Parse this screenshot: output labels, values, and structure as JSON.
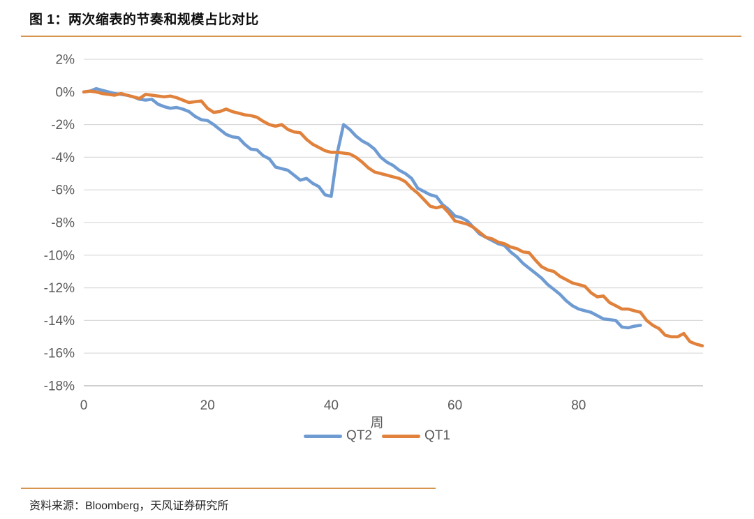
{
  "figure": {
    "title": "图 1：两次缩表的节奏和规模占比对比",
    "source": "资料来源：Bloomberg，天风证券研究所"
  },
  "colors": {
    "accent_rule": "#d6954f",
    "qt2_blue": "#6f9bd3",
    "qt1_orange": "#e0813c"
  },
  "chart_data": {
    "type": "line",
    "title": "",
    "xlabel": "周",
    "ylabel": "",
    "xlim": [
      0,
      100
    ],
    "ylim": [
      -18,
      2
    ],
    "grid": "horizontal",
    "grid_color": "#d9d9d9",
    "axis_line_color": "#bfbfbf",
    "axis_text_color": "#595959",
    "legend_position": "bottom",
    "x_ticks": [
      {
        "value": 0,
        "label": "0"
      },
      {
        "value": 20,
        "label": "20"
      },
      {
        "value": 40,
        "label": "40"
      },
      {
        "value": 60,
        "label": "60"
      },
      {
        "value": 80,
        "label": "80"
      }
    ],
    "y_ticks": [
      {
        "value": 2,
        "label": "2%"
      },
      {
        "value": 0,
        "label": "0%"
      },
      {
        "value": -2,
        "label": "-2%"
      },
      {
        "value": -4,
        "label": "-4%"
      },
      {
        "value": -6,
        "label": "-6%"
      },
      {
        "value": -8,
        "label": "-8%"
      },
      {
        "value": -10,
        "label": "-10%"
      },
      {
        "value": -12,
        "label": "-12%"
      },
      {
        "value": -14,
        "label": "-14%"
      },
      {
        "value": -16,
        "label": "-16%"
      },
      {
        "value": -18,
        "label": "-18%"
      }
    ],
    "series": [
      {
        "name": "QT2",
        "color": "#6f9bd3",
        "x_start": 0,
        "x_step": 1,
        "values": [
          0.0,
          0.05,
          0.2,
          0.1,
          0.0,
          -0.1,
          -0.15,
          -0.2,
          -0.3,
          -0.45,
          -0.5,
          -0.45,
          -0.75,
          -0.9,
          -1.0,
          -0.95,
          -1.05,
          -1.2,
          -1.5,
          -1.7,
          -1.75,
          -2.0,
          -2.3,
          -2.6,
          -2.75,
          -2.8,
          -3.2,
          -3.5,
          -3.55,
          -3.9,
          -4.1,
          -4.6,
          -4.7,
          -4.8,
          -5.1,
          -5.4,
          -5.3,
          -5.6,
          -5.8,
          -6.3,
          -6.4,
          -3.7,
          -2.0,
          -2.3,
          -2.7,
          -3.0,
          -3.2,
          -3.5,
          -4.0,
          -4.3,
          -4.5,
          -4.8,
          -5.0,
          -5.3,
          -5.9,
          -6.1,
          -6.3,
          -6.4,
          -6.9,
          -7.2,
          -7.6,
          -7.7,
          -7.9,
          -8.3,
          -8.7,
          -8.9,
          -9.1,
          -9.3,
          -9.4,
          -9.8,
          -10.1,
          -10.5,
          -10.8,
          -11.1,
          -11.4,
          -11.8,
          -12.1,
          -12.4,
          -12.8,
          -13.1,
          -13.3,
          -13.4,
          -13.5,
          -13.7,
          -13.9,
          -13.95,
          -14.0,
          -14.4,
          -14.45,
          -14.35,
          -14.3
        ]
      },
      {
        "name": "QT1",
        "color": "#e0813c",
        "x_start": 0,
        "x_step": 1,
        "values": [
          0.0,
          0.05,
          0.0,
          -0.1,
          -0.15,
          -0.2,
          -0.1,
          -0.2,
          -0.3,
          -0.4,
          -0.15,
          -0.2,
          -0.25,
          -0.3,
          -0.25,
          -0.35,
          -0.5,
          -0.65,
          -0.6,
          -0.55,
          -1.0,
          -1.25,
          -1.2,
          -1.05,
          -1.2,
          -1.3,
          -1.4,
          -1.45,
          -1.55,
          -1.8,
          -2.0,
          -2.1,
          -2.0,
          -2.3,
          -2.45,
          -2.5,
          -2.9,
          -3.2,
          -3.4,
          -3.6,
          -3.7,
          -3.7,
          -3.75,
          -3.8,
          -4.0,
          -4.3,
          -4.65,
          -4.9,
          -5.0,
          -5.1,
          -5.2,
          -5.3,
          -5.5,
          -5.9,
          -6.2,
          -6.6,
          -7.0,
          -7.1,
          -7.0,
          -7.4,
          -7.9,
          -8.0,
          -8.1,
          -8.3,
          -8.6,
          -8.9,
          -9.0,
          -9.2,
          -9.3,
          -9.5,
          -9.6,
          -9.8,
          -9.85,
          -10.3,
          -10.7,
          -10.9,
          -11.0,
          -11.3,
          -11.5,
          -11.7,
          -11.8,
          -11.9,
          -12.3,
          -12.55,
          -12.5,
          -12.9,
          -13.1,
          -13.3,
          -13.3,
          -13.4,
          -13.5,
          -14.0,
          -14.3,
          -14.5,
          -14.9,
          -15.0,
          -15.0,
          -14.8,
          -15.3,
          -15.45,
          -15.55
        ]
      }
    ]
  }
}
